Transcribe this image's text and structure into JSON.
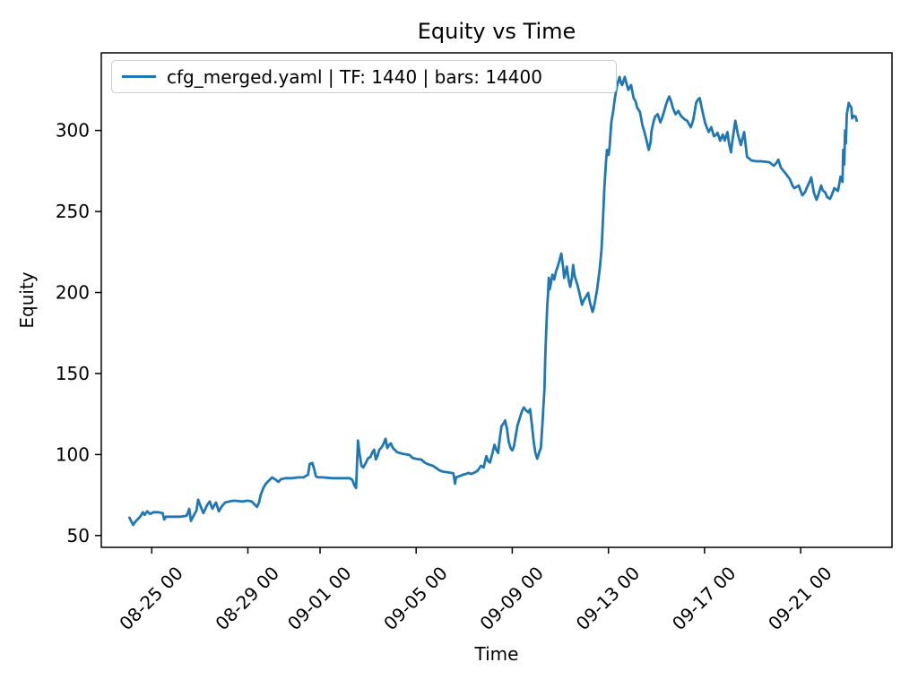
{
  "figure": {
    "background": "#ffffff"
  },
  "chart_data": {
    "type": "line",
    "title": "Equity vs Time",
    "xlabel": "Time",
    "ylabel": "Equity",
    "grid": false,
    "legend_position": "upper left",
    "line_color": "#1f77b4",
    "axis_color": "#000000",
    "x_unit": "days since 08-24 00:00",
    "xlim": [
      -1.1,
      31.8
    ],
    "ylim": [
      42.7,
      347.9
    ],
    "y_ticks": [
      50,
      100,
      150,
      200,
      250,
      300
    ],
    "y_tick_labels": [
      "50",
      "100",
      "150",
      "200",
      "250",
      "300"
    ],
    "x_tick_positions": [
      1,
      5,
      8,
      12,
      16,
      20,
      24,
      28
    ],
    "x_tick_labels": [
      "08-25 00",
      "08-29 00",
      "09-01 00",
      "09-05 00",
      "09-09 00",
      "09-13 00",
      "09-17 00",
      "09-21 00"
    ],
    "series": [
      {
        "name": "cfg_merged.yaml | TF: 1440 | bars: 14400",
        "points": [
          [
            0.07,
            61
          ],
          [
            0.22,
            56.6
          ],
          [
            0.33,
            58.8
          ],
          [
            0.52,
            61.6
          ],
          [
            0.63,
            64.4
          ],
          [
            0.7,
            62.7
          ],
          [
            0.81,
            64.9
          ],
          [
            0.93,
            63.3
          ],
          [
            1.07,
            64.4
          ],
          [
            1.26,
            64.4
          ],
          [
            1.45,
            63.8
          ],
          [
            1.52,
            59.9
          ],
          [
            1.59,
            61.6
          ],
          [
            1.82,
            61.6
          ],
          [
            2.19,
            61.6
          ],
          [
            2.45,
            62.2
          ],
          [
            2.56,
            66.5
          ],
          [
            2.63,
            59
          ],
          [
            2.75,
            62.5
          ],
          [
            2.86,
            65.5
          ],
          [
            2.93,
            72.1
          ],
          [
            3.04,
            67.7
          ],
          [
            3.15,
            63.8
          ],
          [
            3.3,
            68.8
          ],
          [
            3.41,
            71
          ],
          [
            3.52,
            66.6
          ],
          [
            3.67,
            70.4
          ],
          [
            3.79,
            64.9
          ],
          [
            3.9,
            67.7
          ],
          [
            4.05,
            70.4
          ],
          [
            4.23,
            71
          ],
          [
            4.42,
            71.5
          ],
          [
            4.79,
            71
          ],
          [
            4.97,
            71.5
          ],
          [
            5.16,
            71
          ],
          [
            5.27,
            69.3
          ],
          [
            5.38,
            67.7
          ],
          [
            5.46,
            70.4
          ],
          [
            5.53,
            74.9
          ],
          [
            5.64,
            79.3
          ],
          [
            5.75,
            82
          ],
          [
            5.86,
            83.7
          ],
          [
            6.01,
            85.9
          ],
          [
            6.12,
            84.8
          ],
          [
            6.27,
            83.1
          ],
          [
            6.38,
            84.8
          ],
          [
            6.57,
            85.4
          ],
          [
            6.83,
            85.4
          ],
          [
            7.09,
            85.9
          ],
          [
            7.31,
            85.9
          ],
          [
            7.5,
            87.6
          ],
          [
            7.57,
            94.2
          ],
          [
            7.68,
            94.8
          ],
          [
            7.76,
            90.9
          ],
          [
            7.83,
            86.5
          ],
          [
            7.94,
            85.9
          ],
          [
            8.13,
            85.9
          ],
          [
            8.5,
            85.4
          ],
          [
            8.87,
            85.4
          ],
          [
            9.24,
            85.4
          ],
          [
            9.35,
            84.3
          ],
          [
            9.43,
            80.9
          ],
          [
            9.5,
            79.3
          ],
          [
            9.58,
            108.6
          ],
          [
            9.65,
            100
          ],
          [
            9.73,
            93
          ],
          [
            9.8,
            92
          ],
          [
            9.91,
            95
          ],
          [
            9.99,
            97.5
          ],
          [
            10.1,
            98.6
          ],
          [
            10.17,
            101
          ],
          [
            10.25,
            103
          ],
          [
            10.32,
            97
          ],
          [
            10.39,
            99
          ],
          [
            10.47,
            103
          ],
          [
            10.54,
            104
          ],
          [
            10.62,
            105.8
          ],
          [
            10.73,
            109.7
          ],
          [
            10.8,
            104
          ],
          [
            10.88,
            106
          ],
          [
            10.95,
            106.9
          ],
          [
            11.03,
            104
          ],
          [
            11.1,
            103
          ],
          [
            11.21,
            101.4
          ],
          [
            11.32,
            101
          ],
          [
            11.47,
            100.3
          ],
          [
            11.62,
            100
          ],
          [
            11.73,
            99.7
          ],
          [
            11.84,
            98
          ],
          [
            11.95,
            97.5
          ],
          [
            12.1,
            97
          ],
          [
            12.21,
            97
          ],
          [
            12.36,
            95
          ],
          [
            12.47,
            94.2
          ],
          [
            12.59,
            93.5
          ],
          [
            12.7,
            93
          ],
          [
            12.85,
            91.5
          ],
          [
            12.96,
            90.3
          ],
          [
            13.11,
            89.5
          ],
          [
            13.22,
            89.2
          ],
          [
            13.33,
            89
          ],
          [
            13.44,
            88.7
          ],
          [
            13.55,
            88.5
          ],
          [
            13.62,
            82
          ],
          [
            13.66,
            85.9
          ],
          [
            13.77,
            86.5
          ],
          [
            13.88,
            87
          ],
          [
            13.96,
            87.6
          ],
          [
            14.07,
            88
          ],
          [
            14.18,
            88.7
          ],
          [
            14.29,
            88
          ],
          [
            14.44,
            89
          ],
          [
            14.55,
            90
          ],
          [
            14.63,
            91.5
          ],
          [
            14.7,
            93
          ],
          [
            14.81,
            92
          ],
          [
            14.92,
            99
          ],
          [
            15.0,
            96
          ],
          [
            15.07,
            95
          ],
          [
            15.18,
            101
          ],
          [
            15.26,
            106
          ],
          [
            15.33,
            103
          ],
          [
            15.41,
            101
          ],
          [
            15.48,
            110
          ],
          [
            15.55,
            117.5
          ],
          [
            15.63,
            119
          ],
          [
            15.7,
            121
          ],
          [
            15.78,
            116
          ],
          [
            15.85,
            108
          ],
          [
            15.93,
            104
          ],
          [
            16.0,
            102.5
          ],
          [
            16.07,
            105
          ],
          [
            16.15,
            112
          ],
          [
            16.22,
            118
          ],
          [
            16.3,
            122
          ],
          [
            16.41,
            127
          ],
          [
            16.48,
            129
          ],
          [
            16.59,
            127
          ],
          [
            16.67,
            126
          ],
          [
            16.74,
            128
          ],
          [
            16.82,
            118
          ],
          [
            16.89,
            108
          ],
          [
            16.96,
            101
          ],
          [
            17.04,
            97.5
          ],
          [
            17.11,
            101
          ],
          [
            17.19,
            104
          ],
          [
            17.26,
            120
          ],
          [
            17.3,
            131
          ],
          [
            17.34,
            140
          ],
          [
            17.37,
            160
          ],
          [
            17.41,
            175
          ],
          [
            17.45,
            190
          ],
          [
            17.49,
            200
          ],
          [
            17.52,
            209
          ],
          [
            17.56,
            202
          ],
          [
            17.6,
            205
          ],
          [
            17.67,
            211
          ],
          [
            17.75,
            208
          ],
          [
            17.82,
            213
          ],
          [
            17.89,
            216
          ],
          [
            17.97,
            220
          ],
          [
            18.04,
            224
          ],
          [
            18.12,
            215
          ],
          [
            18.16,
            209
          ],
          [
            18.23,
            213
          ],
          [
            18.27,
            216
          ],
          [
            18.34,
            208
          ],
          [
            18.41,
            203.5
          ],
          [
            18.49,
            210
          ],
          [
            18.53,
            217
          ],
          [
            18.6,
            210
          ],
          [
            18.71,
            204.7
          ],
          [
            18.79,
            200
          ],
          [
            18.9,
            192.5
          ],
          [
            18.97,
            195
          ],
          [
            19.05,
            197
          ],
          [
            19.16,
            199.7
          ],
          [
            19.23,
            194
          ],
          [
            19.34,
            188
          ],
          [
            19.38,
            189.7
          ],
          [
            19.45,
            195
          ],
          [
            19.53,
            202
          ],
          [
            19.64,
            214.6
          ],
          [
            19.71,
            226
          ],
          [
            19.75,
            238
          ],
          [
            19.79,
            250
          ],
          [
            19.83,
            264
          ],
          [
            19.9,
            281
          ],
          [
            19.94,
            288
          ],
          [
            20.01,
            285
          ],
          [
            20.05,
            290
          ],
          [
            20.12,
            305
          ],
          [
            20.2,
            312
          ],
          [
            20.27,
            320
          ],
          [
            20.35,
            327
          ],
          [
            20.46,
            333
          ],
          [
            20.53,
            329
          ],
          [
            20.57,
            328
          ],
          [
            20.64,
            331
          ],
          [
            20.68,
            333
          ],
          [
            20.75,
            329
          ],
          [
            20.83,
            325
          ],
          [
            20.9,
            327
          ],
          [
            20.94,
            328
          ],
          [
            21.01,
            323
          ],
          [
            21.05,
            320
          ],
          [
            21.13,
            318
          ],
          [
            21.2,
            314
          ],
          [
            21.31,
            311.5
          ],
          [
            21.42,
            303
          ],
          [
            21.5,
            299
          ],
          [
            21.57,
            295
          ],
          [
            21.68,
            288
          ],
          [
            21.76,
            293
          ],
          [
            21.79,
            299
          ],
          [
            21.87,
            305
          ],
          [
            21.94,
            308.5
          ],
          [
            22.05,
            310
          ],
          [
            22.16,
            305
          ],
          [
            22.24,
            308
          ],
          [
            22.31,
            311.5
          ],
          [
            22.42,
            317
          ],
          [
            22.53,
            321
          ],
          [
            22.61,
            318
          ],
          [
            22.68,
            314
          ],
          [
            22.79,
            310
          ],
          [
            22.91,
            312
          ],
          [
            22.98,
            310
          ],
          [
            23.05,
            308.5
          ],
          [
            23.16,
            307
          ],
          [
            23.28,
            306
          ],
          [
            23.35,
            304
          ],
          [
            23.43,
            302
          ],
          [
            23.5,
            305
          ],
          [
            23.54,
            307.5
          ],
          [
            23.65,
            317
          ],
          [
            23.72,
            319
          ],
          [
            23.8,
            320
          ],
          [
            23.91,
            312
          ],
          [
            24.02,
            305
          ],
          [
            24.09,
            302
          ],
          [
            24.17,
            299
          ],
          [
            24.28,
            302
          ],
          [
            24.39,
            296.5
          ],
          [
            24.46,
            297
          ],
          [
            24.54,
            298.6
          ],
          [
            24.65,
            293.7
          ],
          [
            24.76,
            297.5
          ],
          [
            24.84,
            293.7
          ],
          [
            24.95,
            299
          ],
          [
            25.02,
            292
          ],
          [
            25.1,
            286.5
          ],
          [
            25.17,
            295
          ],
          [
            25.28,
            306
          ],
          [
            25.39,
            297.5
          ],
          [
            25.51,
            291
          ],
          [
            25.65,
            299
          ],
          [
            25.77,
            283.7
          ],
          [
            25.95,
            281.5
          ],
          [
            26.14,
            281
          ],
          [
            26.32,
            281
          ],
          [
            26.51,
            280.7
          ],
          [
            26.7,
            280.4
          ],
          [
            26.88,
            278.2
          ],
          [
            26.99,
            280
          ],
          [
            27.07,
            282
          ],
          [
            27.18,
            277
          ],
          [
            27.36,
            273.7
          ],
          [
            27.55,
            269.9
          ],
          [
            27.66,
            266
          ],
          [
            27.73,
            264.4
          ],
          [
            27.81,
            265
          ],
          [
            27.92,
            266
          ],
          [
            27.99,
            263
          ],
          [
            28.07,
            260
          ],
          [
            28.18,
            262
          ],
          [
            28.25,
            264.4
          ],
          [
            28.36,
            268
          ],
          [
            28.44,
            271
          ],
          [
            28.55,
            261.6
          ],
          [
            28.66,
            257.2
          ],
          [
            28.73,
            260
          ],
          [
            28.85,
            266
          ],
          [
            28.92,
            263
          ],
          [
            29.03,
            261.6
          ],
          [
            29.1,
            259
          ],
          [
            29.22,
            257.8
          ],
          [
            29.29,
            260
          ],
          [
            29.4,
            264.4
          ],
          [
            29.55,
            262.7
          ],
          [
            29.66,
            271.5
          ],
          [
            29.74,
            268.2
          ],
          [
            29.77,
            288
          ],
          [
            29.81,
            279
          ],
          [
            29.85,
            300
          ],
          [
            29.88,
            292
          ],
          [
            29.92,
            310
          ],
          [
            30.0,
            317
          ],
          [
            30.03,
            316
          ],
          [
            30.11,
            314
          ],
          [
            30.14,
            307.5
          ],
          [
            30.22,
            309
          ],
          [
            30.29,
            308.5
          ],
          [
            30.33,
            306
          ]
        ]
      }
    ]
  }
}
